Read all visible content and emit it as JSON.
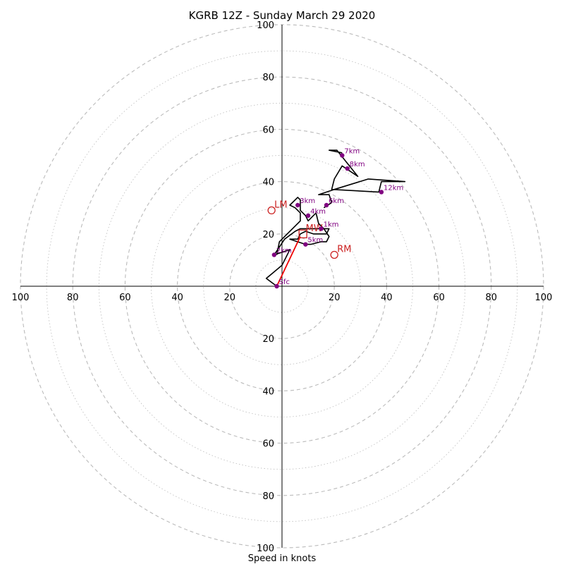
{
  "chart_data": {
    "type": "hodograph",
    "title": "KGRB 12Z - Sunday March 29 2020",
    "xlabel": "Speed in knots",
    "max_speed": 100,
    "ring_step": 10,
    "tick_labels": {
      "x_neg": [
        "100",
        "80",
        "60",
        "40",
        "20"
      ],
      "x_pos": [
        "20",
        "40",
        "60",
        "80",
        "100"
      ],
      "y_pos": [
        "20",
        "40",
        "60",
        "80",
        "100"
      ],
      "y_neg": [
        "20",
        "40",
        "60",
        "80",
        "100"
      ]
    },
    "tick_values": [
      20,
      40,
      60,
      80,
      100
    ],
    "colors": {
      "grid": "#bbbbbb",
      "profile": "#000000",
      "points": "#800080",
      "markers": "#cc2222",
      "mean_wind_vector": "#ee0000"
    },
    "wind_profile": [
      [
        -2,
        0
      ],
      [
        -6,
        3
      ],
      [
        0,
        8
      ],
      [
        3,
        14
      ],
      [
        -3,
        12
      ],
      [
        1,
        18
      ],
      [
        5,
        21
      ],
      [
        7,
        22
      ],
      [
        13,
        22
      ],
      [
        18,
        22
      ],
      [
        17,
        20
      ],
      [
        12,
        20
      ],
      [
        9,
        21
      ],
      [
        7,
        20
      ],
      [
        6,
        18
      ],
      [
        3,
        18
      ],
      [
        9,
        16
      ],
      [
        11,
        16
      ],
      [
        15,
        17
      ],
      [
        17,
        17
      ],
      [
        18,
        19
      ],
      [
        16,
        22
      ],
      [
        14,
        24
      ],
      [
        13,
        28
      ],
      [
        10,
        25
      ],
      [
        9,
        27
      ],
      [
        7,
        29
      ],
      [
        7,
        33
      ],
      [
        6,
        34
      ],
      [
        3,
        31
      ],
      [
        5,
        30
      ],
      [
        7,
        28
      ],
      [
        7,
        25
      ],
      [
        5,
        23
      ],
      [
        2,
        20
      ],
      [
        -1,
        17
      ],
      [
        -2,
        12
      ]
    ],
    "upper_profile": [
      [
        16,
        30
      ],
      [
        19,
        32
      ],
      [
        18,
        35
      ],
      [
        14,
        35
      ],
      [
        20,
        37
      ],
      [
        33,
        41
      ],
      [
        47,
        40
      ],
      [
        38,
        40
      ],
      [
        37,
        36
      ],
      [
        19,
        37
      ],
      [
        20,
        41
      ],
      [
        23,
        46
      ],
      [
        29,
        42
      ],
      [
        21,
        52
      ],
      [
        18,
        52
      ],
      [
        23,
        51
      ]
    ],
    "height_points": [
      {
        "label": "Sfc",
        "u": -2,
        "v": 0
      },
      {
        "label": "1km",
        "u": 15,
        "v": 22
      },
      {
        "label": "2km",
        "u": -3,
        "v": 12
      },
      {
        "label": "3km",
        "u": 6,
        "v": 31
      },
      {
        "label": "4km",
        "u": 10,
        "v": 27
      },
      {
        "label": "5km",
        "u": 9,
        "v": 16
      },
      {
        "label": "6km",
        "u": 17,
        "v": 31
      },
      {
        "label": "7km",
        "u": 23,
        "v": 50
      },
      {
        "label": "8km",
        "u": 25,
        "v": 45
      },
      {
        "label": "12km",
        "u": 38,
        "v": 36
      }
    ],
    "markers": [
      {
        "label": "LM",
        "u": -4,
        "v": 29,
        "shape": "circle"
      },
      {
        "label": "RM",
        "u": 20,
        "v": 12,
        "shape": "circle"
      },
      {
        "label": "MW",
        "u": 8,
        "v": 20,
        "shape": "square"
      }
    ],
    "mean_wind_vector": {
      "from": [
        -2,
        0
      ],
      "to": [
        7,
        19
      ]
    }
  }
}
